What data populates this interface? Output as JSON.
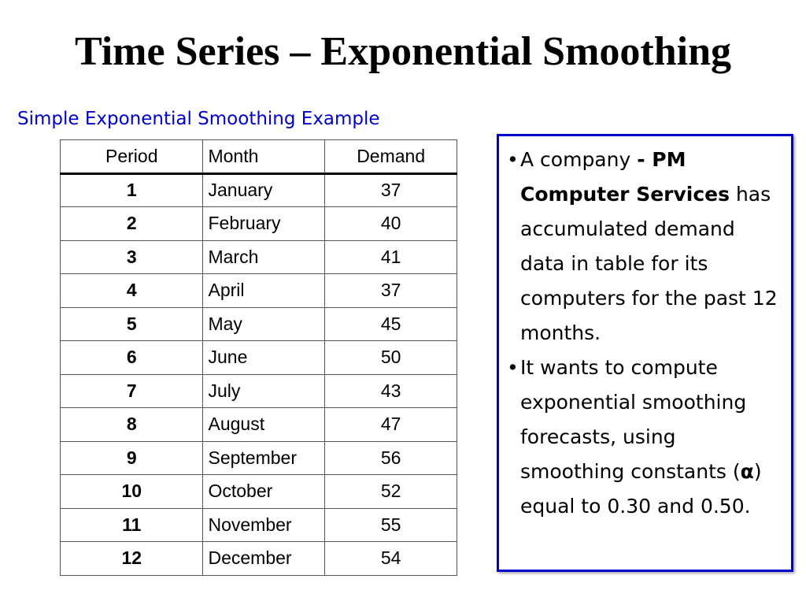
{
  "slide": {
    "title": "Time Series – Exponential Smoothing",
    "subtitle": "Simple Exponential Smoothing Example"
  },
  "table": {
    "headers": [
      "Period",
      "Month",
      "Demand"
    ],
    "rows": [
      {
        "period": "1",
        "month": "January",
        "demand": "37"
      },
      {
        "period": "2",
        "month": "February",
        "demand": "40"
      },
      {
        "period": "3",
        "month": "March",
        "demand": "41"
      },
      {
        "period": "4",
        "month": "April",
        "demand": "37"
      },
      {
        "period": "5",
        "month": "May",
        "demand": "45"
      },
      {
        "period": "6",
        "month": "June",
        "demand": "50"
      },
      {
        "period": "7",
        "month": "July",
        "demand": "43"
      },
      {
        "period": "8",
        "month": "August",
        "demand": "47"
      },
      {
        "period": "9",
        "month": "September",
        "demand": "56"
      },
      {
        "period": "10",
        "month": "October",
        "demand": "52"
      },
      {
        "period": "11",
        "month": "November",
        "demand": "55"
      },
      {
        "period": "12",
        "month": "December",
        "demand": "54"
      }
    ]
  },
  "info_box": {
    "bullet_symbol": "•",
    "bullet1": {
      "prefix": "A company ",
      "company": "- PM Computer Services",
      "suffix": " has accumulated demand data in table for its computers for the past 12 months."
    },
    "bullet2": {
      "prefix": "It wants to compute exponential smoothing forecasts, using smoothing constants (",
      "symbol": "α",
      "suffix": ") equal to 0.30 and 0.50."
    }
  },
  "colors": {
    "accent_blue": "#0000cc",
    "text": "#000000",
    "background": "#ffffff"
  }
}
